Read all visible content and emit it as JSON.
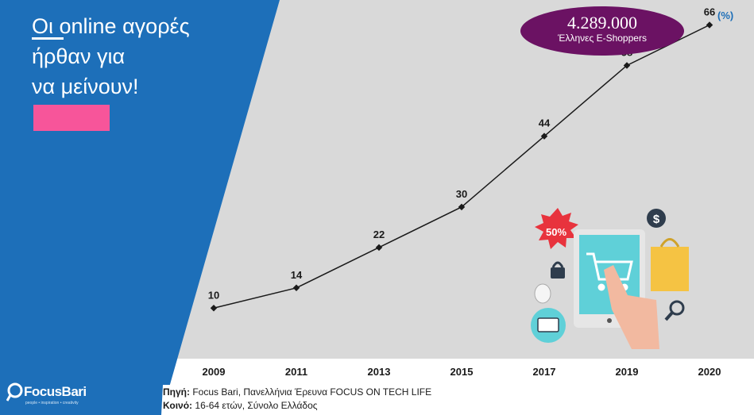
{
  "panel": {
    "title_lines": [
      "Οι online αγορές",
      "ήρθαν για",
      "να μείνουν!"
    ]
  },
  "badge": {
    "value": "4.289.000",
    "label": "Έλληνες E-Shoppers"
  },
  "unit_label": "(%)",
  "footer": {
    "source_label": "Πηγή:",
    "source_text": "Focus Bari, Πανελλήνια Έρευνα FOCUS ON TECH LIFE",
    "sample_label": "Κοινό:",
    "sample_text": "16-64 ετών, Σύνολο Ελλάδος"
  },
  "logo": {
    "name": "FocusBari",
    "tagline": "people • inspiration • creativity"
  },
  "illustration": {
    "discount_label": "50%"
  },
  "colors": {
    "blue_panel": "#1d6fb9",
    "plot_bg": "#d9d9d9",
    "pink": "#f7559a",
    "purple": "#6b1263",
    "line": "#1a1a1a"
  },
  "chart_data": {
    "type": "line",
    "x": [
      "2009",
      "2011",
      "2013",
      "2015",
      "2017",
      "2019",
      "2020"
    ],
    "series": [
      {
        "values": [
          10,
          14,
          22,
          30,
          44,
          58,
          66
        ]
      }
    ],
    "ylabel": "(%)",
    "ylim": [
      0,
      70
    ],
    "grid": false,
    "legend": "none"
  }
}
